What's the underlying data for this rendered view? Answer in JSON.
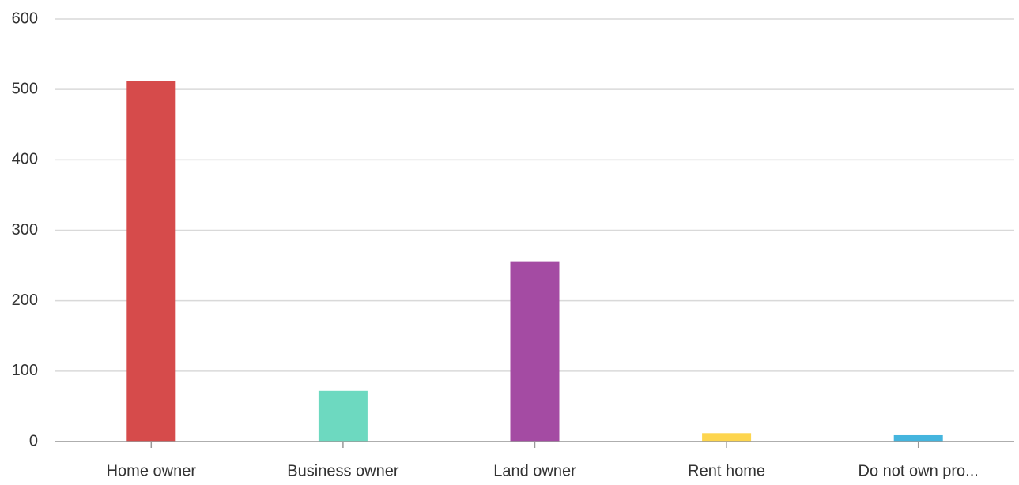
{
  "chart_data": {
    "type": "bar",
    "categories": [
      "Home owner",
      "Business owner",
      "Land owner",
      "Rent home",
      "Do not own pro..."
    ],
    "values": [
      512,
      72,
      255,
      12,
      9
    ],
    "colors": [
      "#d64b4b",
      "#6dd9c0",
      "#a44ba3",
      "#fdd54e",
      "#45b5de"
    ],
    "ylim": [
      0,
      600
    ],
    "yticks": [
      0,
      100,
      200,
      300,
      400,
      500,
      600
    ],
    "grid": true
  }
}
